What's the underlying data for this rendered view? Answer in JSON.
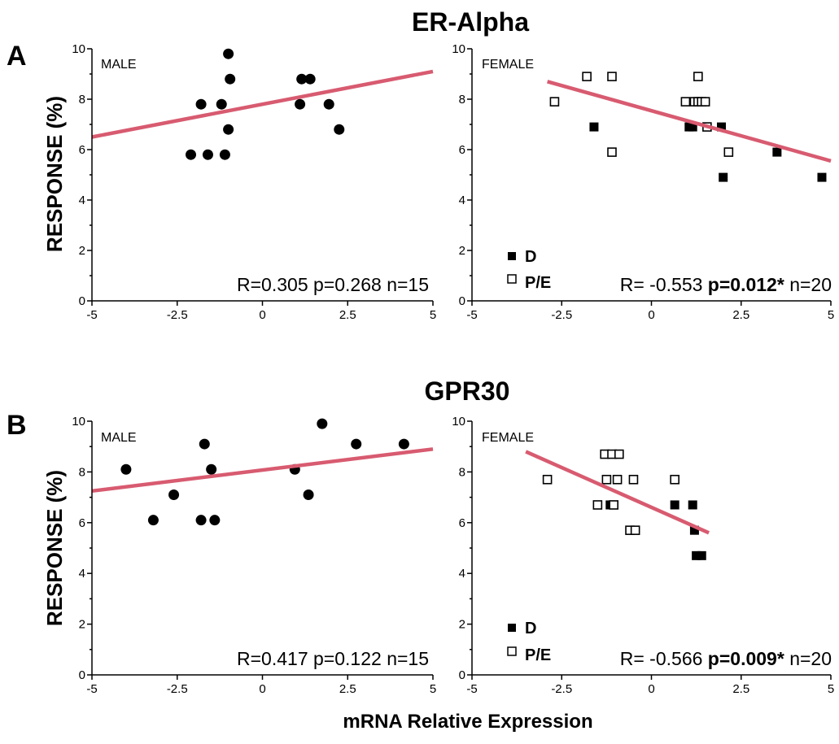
{
  "figure": {
    "xlabel": "mRNA Relative Expression",
    "ylabel": "RESPONSE (%)"
  },
  "colors": {
    "regression_line": "#d85b70",
    "marker": "#000000",
    "axis": "#000000"
  },
  "panels": [
    {
      "letter": "A",
      "title": "ER-Alpha",
      "charts": [
        {
          "label": "MALE",
          "stats": {
            "r": "R=0.305",
            "p": "p=0.268",
            "n": "n=15",
            "p_bold": false
          }
        },
        {
          "label": "FEMALE",
          "stats": {
            "r": "R= -0.553",
            "p": "p=0.012*",
            "n": "n=20",
            "p_bold": true
          },
          "legend": [
            {
              "marker": "filled-square",
              "label": "D"
            },
            {
              "marker": "open-square",
              "label": "P/E"
            }
          ]
        }
      ]
    },
    {
      "letter": "B",
      "title": "GPR30",
      "charts": [
        {
          "label": "MALE",
          "stats": {
            "r": "R=0.417",
            "p": "p=0.122",
            "n": "n=15",
            "p_bold": false
          }
        },
        {
          "label": "FEMALE",
          "stats": {
            "r": "R= -0.566",
            "p": "p=0.009*",
            "n": "n=20",
            "p_bold": true
          },
          "legend": [
            {
              "marker": "filled-square",
              "label": "D"
            },
            {
              "marker": "open-square",
              "label": "P/E"
            }
          ]
        }
      ]
    }
  ],
  "chart_data": [
    {
      "type": "scatter",
      "xlim": [
        -5,
        5
      ],
      "ylim": [
        0,
        10
      ],
      "xticks": [
        "-5",
        "-2.5",
        "0",
        "2.5",
        "5"
      ],
      "yticks": [
        "0",
        "2",
        "4",
        "6",
        "8",
        "10"
      ],
      "grid": false,
      "series": [
        {
          "marker": "filled-circle",
          "x": [
            -2.1,
            -1.8,
            -1.6,
            -1.2,
            -1.1,
            -1.0,
            -1.0,
            -0.95,
            1.1,
            1.15,
            1.4,
            1.95,
            2.25
          ],
          "y": [
            5.8,
            7.8,
            5.8,
            7.8,
            5.8,
            6.8,
            9.8,
            8.8,
            7.8,
            8.8,
            8.8,
            7.8,
            6.8
          ]
        }
      ],
      "regression": {
        "x": [
          -5,
          5
        ],
        "y": [
          6.5,
          9.1
        ]
      }
    },
    {
      "type": "scatter",
      "xlim": [
        -5,
        5
      ],
      "ylim": [
        0,
        10
      ],
      "xticks": [
        "-5",
        "-2.5",
        "0",
        "2.5",
        "5"
      ],
      "yticks": [
        "0",
        "2",
        "4",
        "6",
        "8",
        "10"
      ],
      "grid": false,
      "legend_position": "bottom-left",
      "series": [
        {
          "marker": "filled-square",
          "x": [
            -1.6,
            1.05,
            1.15,
            1.95,
            2.0,
            3.5,
            4.75
          ],
          "y": [
            6.9,
            6.9,
            6.9,
            6.9,
            4.9,
            5.9,
            4.9
          ]
        },
        {
          "marker": "open-square",
          "x": [
            -2.7,
            -1.8,
            -1.1,
            -1.1,
            0.95,
            1.2,
            1.3,
            1.3,
            1.4,
            1.5,
            1.55,
            2.15
          ],
          "y": [
            7.9,
            8.9,
            8.9,
            5.9,
            7.9,
            7.9,
            7.9,
            8.9,
            7.9,
            7.9,
            6.9,
            5.9
          ]
        }
      ],
      "regression": {
        "x": [
          -2.9,
          5
        ],
        "y": [
          8.7,
          5.55
        ]
      }
    },
    {
      "type": "scatter",
      "xlim": [
        -5,
        5
      ],
      "ylim": [
        0,
        10
      ],
      "xticks": [
        "-5",
        "-2.5",
        "0",
        "2.5",
        "5"
      ],
      "yticks": [
        "0",
        "2",
        "4",
        "6",
        "8",
        "10"
      ],
      "grid": false,
      "series": [
        {
          "marker": "filled-circle",
          "x": [
            -4.0,
            -3.2,
            -2.6,
            -1.8,
            -1.7,
            -1.5,
            -1.4,
            0.95,
            1.35,
            1.75,
            2.75,
            4.15
          ],
          "y": [
            8.1,
            6.1,
            7.1,
            6.1,
            9.1,
            8.1,
            6.1,
            8.1,
            7.1,
            9.9,
            9.1,
            9.1
          ]
        }
      ],
      "regression": {
        "x": [
          -5,
          5
        ],
        "y": [
          7.25,
          8.9
        ]
      }
    },
    {
      "type": "scatter",
      "xlim": [
        -5,
        5
      ],
      "ylim": [
        0,
        10
      ],
      "xticks": [
        "-5",
        "-2.5",
        "0",
        "2.5",
        "5"
      ],
      "yticks": [
        "0",
        "2",
        "4",
        "6",
        "8",
        "10"
      ],
      "grid": false,
      "legend_position": "bottom-left",
      "series": [
        {
          "marker": "filled-square",
          "x": [
            -1.15,
            0.65,
            1.15,
            1.2,
            1.25,
            1.4
          ],
          "y": [
            6.7,
            6.7,
            6.7,
            5.7,
            4.7,
            4.7
          ]
        },
        {
          "marker": "open-square",
          "x": [
            -2.9,
            -1.5,
            -1.3,
            -1.25,
            -1.1,
            -1.05,
            -0.95,
            -0.9,
            -0.6,
            -0.5,
            -0.45,
            0.65
          ],
          "y": [
            7.7,
            6.7,
            8.7,
            7.7,
            8.7,
            6.7,
            7.7,
            8.7,
            5.7,
            7.7,
            5.7,
            7.7
          ]
        }
      ],
      "regression": {
        "x": [
          -3.5,
          1.6
        ],
        "y": [
          8.8,
          5.6
        ]
      }
    }
  ]
}
